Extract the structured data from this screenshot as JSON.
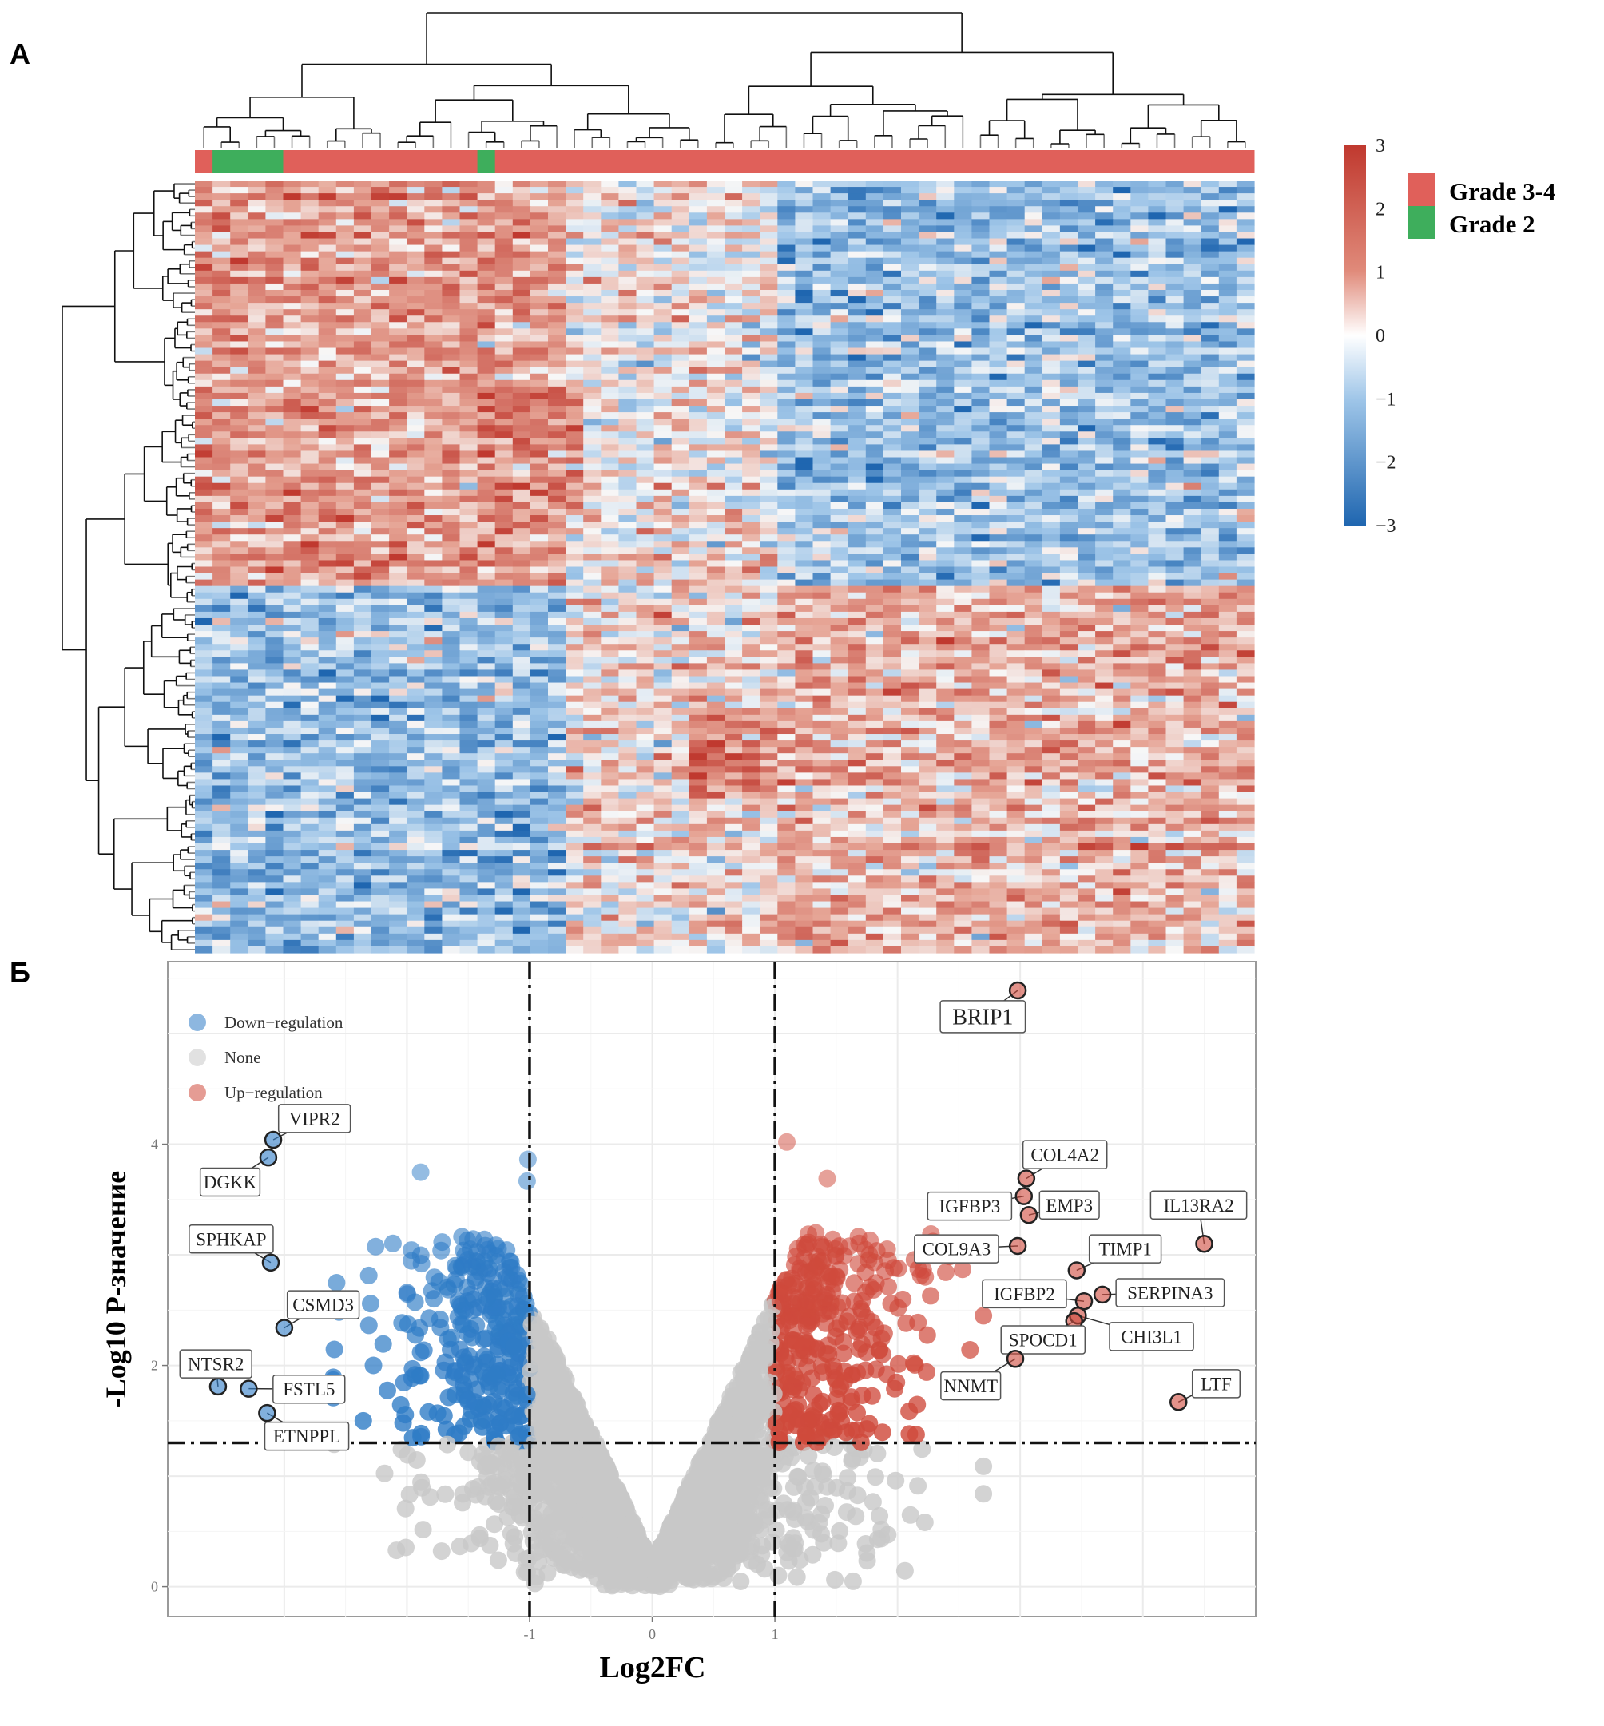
{
  "panels": {
    "a_label": "А",
    "b_label": "Б"
  },
  "chart_data": [
    {
      "type": "heatmap",
      "title": "",
      "color_scale": {
        "range": [
          -3,
          3
        ],
        "ticks": [
          "3",
          "2",
          "1",
          "0",
          "−1",
          "−2",
          "−3"
        ],
        "low_color": "#1f66b0",
        "mid_color": "#ffffff",
        "high_color": "#c0392f"
      },
      "annotation_legend": [
        {
          "label": "Grade 3-4",
          "color": "#e0605a"
        },
        {
          "label": "Grade 2",
          "color": "#3eae5c"
        }
      ],
      "column_annotation": [
        "Grade 3-4",
        "Grade 2",
        "Grade 2",
        "Grade 2",
        "Grade 2",
        "Grade 3-4",
        "Grade 3-4",
        "Grade 3-4",
        "Grade 3-4",
        "Grade 3-4",
        "Grade 3-4",
        "Grade 3-4",
        "Grade 3-4",
        "Grade 3-4",
        "Grade 3-4",
        "Grade 3-4",
        "Grade 2",
        "Grade 3-4",
        "Grade 3-4",
        "Grade 3-4",
        "Grade 3-4",
        "Grade 3-4",
        "Grade 3-4",
        "Grade 3-4",
        "Grade 3-4",
        "Grade 3-4",
        "Grade 3-4",
        "Grade 3-4",
        "Grade 3-4",
        "Grade 3-4",
        "Grade 3-4",
        "Grade 3-4",
        "Grade 3-4",
        "Grade 3-4",
        "Grade 3-4",
        "Grade 3-4",
        "Grade 3-4",
        "Grade 3-4",
        "Grade 3-4",
        "Grade 3-4",
        "Grade 3-4",
        "Grade 3-4",
        "Grade 3-4",
        "Grade 3-4",
        "Grade 3-4",
        "Grade 3-4",
        "Grade 3-4",
        "Grade 3-4",
        "Grade 3-4",
        "Grade 3-4",
        "Grade 3-4",
        "Grade 3-4",
        "Grade 3-4",
        "Grade 3-4",
        "Grade 3-4",
        "Grade 3-4",
        "Grade 3-4",
        "Grade 3-4",
        "Grade 3-4",
        "Grade 3-4"
      ],
      "row_clusters": [
        "up in left columns / down in right columns",
        "down in left columns / up in right columns"
      ]
    },
    {
      "type": "scatter",
      "title": "",
      "xlabel": "Log2FC",
      "ylabel": "-Log10 P-значение",
      "xlim": [
        -3.95,
        4.92
      ],
      "ylim": [
        -0.27,
        5.65
      ],
      "x_ticks": [
        {
          "value": -1,
          "label": "-1"
        },
        {
          "value": 0,
          "label": "0"
        },
        {
          "value": 1,
          "label": "1"
        }
      ],
      "y_ticks": [
        {
          "value": 0,
          "label": "0"
        },
        {
          "value": 2,
          "label": "2"
        },
        {
          "value": 4,
          "label": "4"
        }
      ],
      "grid": true,
      "thresholds": {
        "log2fc": [
          -1,
          1
        ],
        "neg_log10_p": 1.3
      },
      "legend_position": "top-left",
      "legend": [
        {
          "label": "Down−regulation",
          "color": "#2f7cc6"
        },
        {
          "label": "None",
          "color": "#c8c8c8"
        },
        {
          "label": "Up−regulation",
          "color": "#cf4a3c"
        }
      ],
      "labeled_genes": [
        {
          "name": "BRIP1",
          "x": 2.98,
          "y": 5.39,
          "group": "up"
        },
        {
          "name": "VIPR2",
          "x": -3.09,
          "y": 4.04,
          "group": "down"
        },
        {
          "name": "DGKK",
          "x": -3.13,
          "y": 3.88,
          "group": "down"
        },
        {
          "name": "SPHKAP",
          "x": -3.11,
          "y": 2.93,
          "group": "down"
        },
        {
          "name": "CSMD3",
          "x": -3.0,
          "y": 2.34,
          "group": "down"
        },
        {
          "name": "NTSR2",
          "x": -3.54,
          "y": 1.81,
          "group": "down"
        },
        {
          "name": "FSTL5",
          "x": -3.29,
          "y": 1.79,
          "group": "down"
        },
        {
          "name": "ETNPPL",
          "x": -3.14,
          "y": 1.57,
          "group": "down"
        },
        {
          "name": "COL4A2",
          "x": 3.05,
          "y": 3.69,
          "group": "up"
        },
        {
          "name": "IGFBP3",
          "x": 3.03,
          "y": 3.53,
          "group": "up"
        },
        {
          "name": "EMP3",
          "x": 3.07,
          "y": 3.36,
          "group": "up"
        },
        {
          "name": "IL13RA2",
          "x": 4.5,
          "y": 3.1,
          "group": "up"
        },
        {
          "name": "COL9A3",
          "x": 2.98,
          "y": 3.08,
          "group": "up"
        },
        {
          "name": "TIMP1",
          "x": 3.46,
          "y": 2.86,
          "group": "up"
        },
        {
          "name": "IGFBP2",
          "x": 3.52,
          "y": 2.58,
          "group": "up"
        },
        {
          "name": "SERPINA3",
          "x": 3.67,
          "y": 2.64,
          "group": "up"
        },
        {
          "name": "CHI3L1",
          "x": 3.47,
          "y": 2.45,
          "group": "up"
        },
        {
          "name": "SPOCD1",
          "x": 3.44,
          "y": 2.4,
          "group": "up"
        },
        {
          "name": "NNMT",
          "x": 2.96,
          "y": 2.06,
          "group": "up"
        },
        {
          "name": "LTF",
          "x": 4.29,
          "y": 1.67,
          "group": "up"
        }
      ]
    }
  ]
}
